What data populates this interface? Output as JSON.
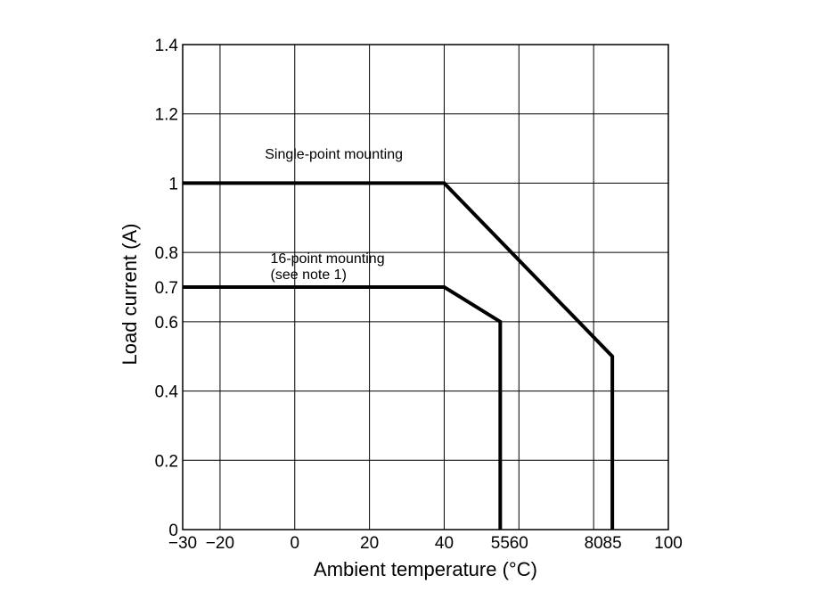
{
  "chart_data": {
    "type": "line",
    "title": "",
    "xlabel": "Ambient temperature (°C)",
    "ylabel": "Load current  (A)",
    "xlim": [
      -30,
      100
    ],
    "ylim": [
      0,
      1.4
    ],
    "grid": true,
    "x_ticks": [
      {
        "value": -30,
        "label": "−30"
      },
      {
        "value": -20,
        "label": "−20"
      },
      {
        "value": 0,
        "label": "0"
      },
      {
        "value": 20,
        "label": "20"
      },
      {
        "value": 40,
        "label": "40"
      },
      {
        "value": 55,
        "label": "55"
      },
      {
        "value": 60,
        "label": "60"
      },
      {
        "value": 80,
        "label": "80"
      },
      {
        "value": 85,
        "label": "85"
      },
      {
        "value": 100,
        "label": "100"
      }
    ],
    "x_gridlines": [
      -20,
      0,
      20,
      40,
      60,
      80
    ],
    "y_ticks": [
      {
        "value": 0,
        "label": "0"
      },
      {
        "value": 0.2,
        "label": "0.2"
      },
      {
        "value": 0.4,
        "label": "0.4"
      },
      {
        "value": 0.6,
        "label": "0.6"
      },
      {
        "value": 0.7,
        "label": "0.7"
      },
      {
        "value": 0.8,
        "label": "0.8"
      },
      {
        "value": 1.0,
        "label": "1"
      },
      {
        "value": 1.2,
        "label": "1.2"
      },
      {
        "value": 1.4,
        "label": "1.4"
      }
    ],
    "y_gridlines": [
      0.2,
      0.4,
      0.6,
      0.8,
      1.0,
      1.2
    ],
    "series": [
      {
        "points": [
          [
            -30,
            1.0
          ],
          [
            40,
            1.0
          ],
          [
            85,
            0.5
          ],
          [
            85,
            0
          ]
        ]
      },
      {
        "points": [
          [
            -30,
            0.7
          ],
          [
            40,
            0.7
          ],
          [
            55,
            0.6
          ],
          [
            55,
            0
          ]
        ]
      }
    ],
    "annotations": [
      {
        "lines": [
          "Single-point mounting"
        ],
        "x": -8,
        "y": 1.07
      },
      {
        "lines": [
          "16-point mounting",
          "(see note 1)"
        ],
        "x": -6.5,
        "y": 0.77
      }
    ]
  }
}
